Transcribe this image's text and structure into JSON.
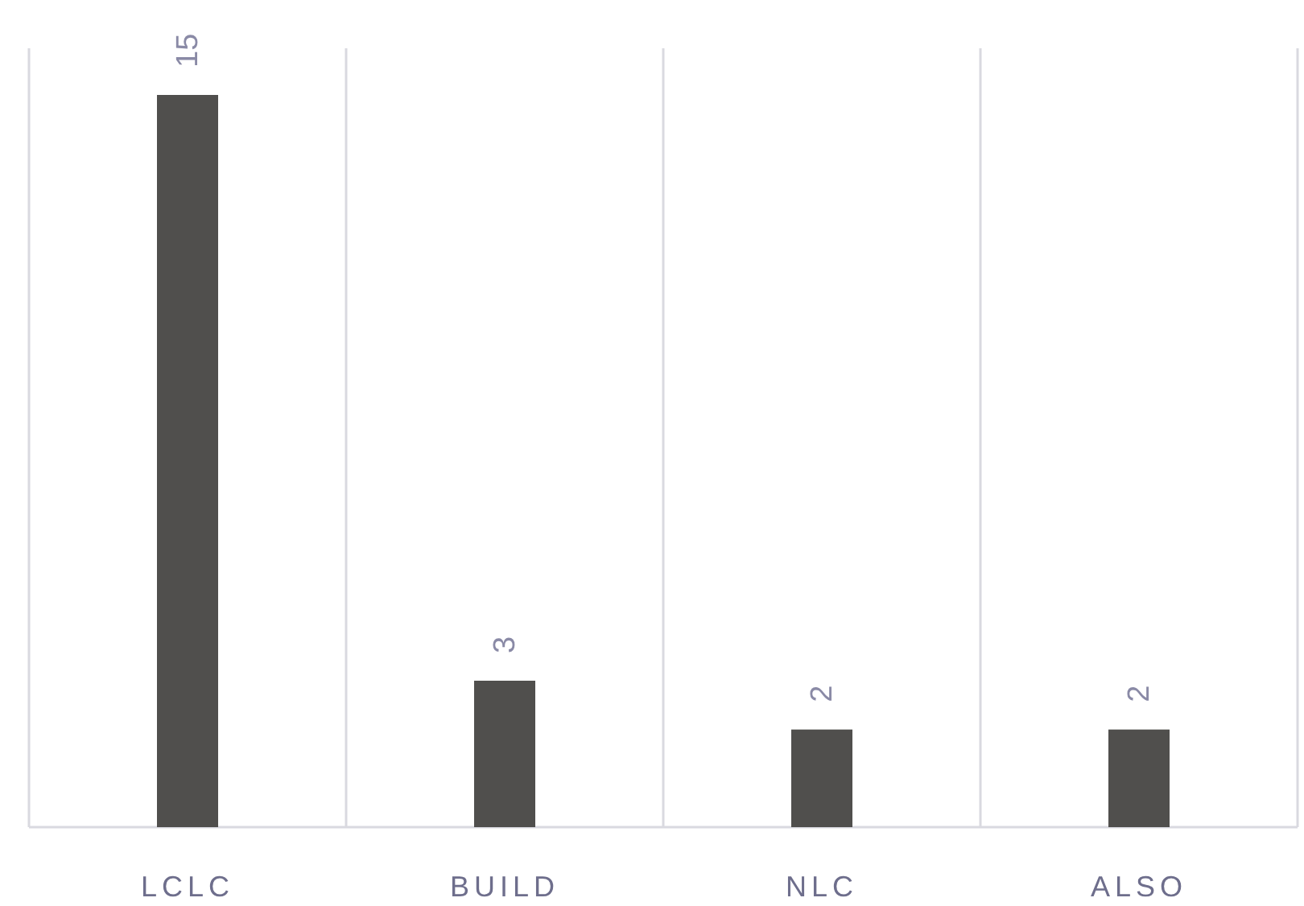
{
  "chart_data": {
    "type": "bar",
    "categories": [
      "LCLC",
      "BUILD",
      "NLC",
      "ALSO"
    ],
    "values": [
      15,
      3,
      2,
      2
    ],
    "color": "#504f4d",
    "data_labels": true,
    "grid": "x"
  }
}
